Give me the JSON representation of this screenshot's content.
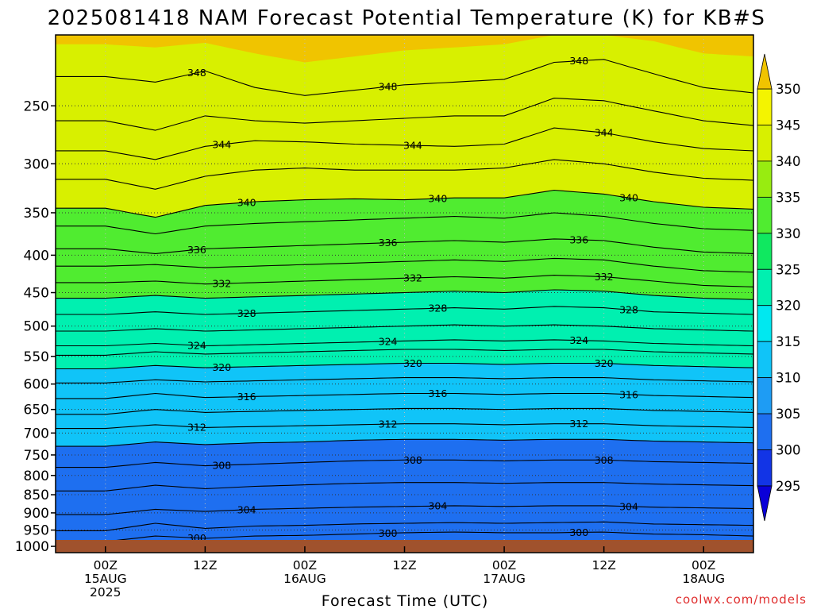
{
  "chart_data": {
    "type": "heatmap",
    "title": "2025081418 NAM Forecast Potential Temperature (K) for KB#S",
    "xlabel": "Forecast Time (UTC)",
    "ylabel": "",
    "watermark": "coolwx.com/models",
    "x": {
      "ticks": [
        {
          "lines": [
            "00Z",
            "15AUG",
            "2025"
          ]
        },
        {
          "lines": [
            "12Z"
          ]
        },
        {
          "lines": [
            "00Z",
            "16AUG"
          ]
        },
        {
          "lines": [
            "12Z"
          ]
        },
        {
          "lines": [
            "00Z",
            "17AUG"
          ]
        },
        {
          "lines": [
            "12Z"
          ]
        },
        {
          "lines": [
            "00Z",
            "18AUG"
          ]
        }
      ],
      "range_hours": [
        -6,
        78
      ]
    },
    "y": {
      "scale": "pressure",
      "range_hpa": [
        200,
        1020
      ],
      "ticks": [
        250,
        300,
        350,
        400,
        450,
        500,
        550,
        600,
        650,
        700,
        750,
        800,
        850,
        900,
        950,
        1000
      ],
      "grid": true
    },
    "colorbar": {
      "labels": [
        295,
        300,
        305,
        310,
        315,
        320,
        325,
        330,
        335,
        340,
        345,
        350
      ],
      "colors": [
        "#0a00d8",
        "#1234e6",
        "#1e6ff0",
        "#1e9cf4",
        "#10c4f8",
        "#00e8f0",
        "#00f0b0",
        "#10e860",
        "#50ec30",
        "#98ec10",
        "#d8f000",
        "#f4f400",
        "#f0c400"
      ]
    },
    "surface_color": "#a0522d",
    "contour_interval": 2,
    "labeled_contours": [
      348,
      344,
      340,
      336,
      332,
      328,
      324,
      320,
      316,
      312,
      308,
      304,
      300
    ],
    "contours": [
      {
        "value": 300,
        "t": [
          0,
          6,
          12,
          18,
          24,
          30,
          36,
          42,
          48,
          54,
          60,
          66,
          72,
          78
        ],
        "p": [
          985,
          968,
          975,
          968,
          966,
          962,
          958,
          956,
          958,
          958,
          956,
          962,
          964,
          968
        ]
      },
      {
        "value": 302,
        "t": [
          0,
          6,
          12,
          18,
          24,
          30,
          36,
          42,
          48,
          54,
          60,
          66,
          72,
          78
        ],
        "p": [
          952,
          930,
          945,
          938,
          936,
          932,
          930,
          928,
          930,
          928,
          926,
          932,
          934,
          936
        ]
      },
      {
        "value": 304,
        "t": [
          0,
          6,
          12,
          18,
          24,
          30,
          36,
          42,
          48,
          54,
          60,
          66,
          72,
          78
        ],
        "p": [
          905,
          890,
          896,
          890,
          887,
          884,
          882,
          880,
          882,
          880,
          880,
          884,
          886,
          888
        ]
      },
      {
        "value": 306,
        "t": [
          0,
          6,
          12,
          18,
          24,
          30,
          36,
          42,
          48,
          54,
          60,
          66,
          72,
          78
        ],
        "p": [
          840,
          825,
          834,
          828,
          824,
          820,
          818,
          818,
          820,
          818,
          818,
          822,
          824,
          826
        ]
      },
      {
        "value": 308,
        "t": [
          0,
          6,
          12,
          18,
          24,
          30,
          36,
          42,
          48,
          54,
          60,
          66,
          72,
          78
        ],
        "p": [
          780,
          768,
          776,
          772,
          768,
          764,
          762,
          762,
          764,
          762,
          762,
          766,
          768,
          770
        ]
      },
      {
        "value": 310,
        "t": [
          0,
          6,
          12,
          18,
          24,
          30,
          36,
          42,
          48,
          54,
          60,
          66,
          72,
          78
        ],
        "p": [
          730,
          720,
          726,
          722,
          720,
          716,
          714,
          714,
          716,
          714,
          714,
          718,
          720,
          722
        ]
      },
      {
        "value": 312,
        "t": [
          0,
          6,
          12,
          18,
          24,
          30,
          36,
          42,
          48,
          54,
          60,
          66,
          72,
          78
        ],
        "p": [
          690,
          682,
          688,
          686,
          684,
          682,
          680,
          680,
          682,
          680,
          680,
          684,
          686,
          688
        ]
      },
      {
        "value": 314,
        "t": [
          0,
          6,
          12,
          18,
          24,
          30,
          36,
          42,
          48,
          54,
          60,
          66,
          72,
          78
        ],
        "p": [
          660,
          650,
          656,
          654,
          652,
          650,
          648,
          648,
          650,
          648,
          648,
          652,
          654,
          656
        ]
      },
      {
        "value": 316,
        "t": [
          0,
          6,
          12,
          18,
          24,
          30,
          36,
          42,
          48,
          54,
          60,
          66,
          72,
          78
        ],
        "p": [
          628,
          618,
          626,
          624,
          622,
          620,
          618,
          618,
          620,
          618,
          618,
          622,
          624,
          626
        ]
      },
      {
        "value": 318,
        "t": [
          0,
          6,
          12,
          18,
          24,
          30,
          36,
          42,
          48,
          54,
          60,
          66,
          72,
          78
        ],
        "p": [
          598,
          592,
          596,
          594,
          592,
          590,
          588,
          588,
          590,
          588,
          588,
          592,
          594,
          596
        ]
      },
      {
        "value": 320,
        "t": [
          0,
          6,
          12,
          18,
          24,
          30,
          36,
          42,
          48,
          54,
          60,
          66,
          72,
          78
        ],
        "p": [
          572,
          566,
          570,
          568,
          566,
          564,
          562,
          562,
          564,
          562,
          562,
          566,
          568,
          570
        ]
      },
      {
        "value": 322,
        "t": [
          0,
          6,
          12,
          18,
          24,
          30,
          36,
          42,
          48,
          54,
          60,
          66,
          72,
          78
        ],
        "p": [
          548,
          542,
          546,
          544,
          542,
          540,
          538,
          538,
          540,
          538,
          538,
          542,
          544,
          546
        ]
      },
      {
        "value": 324,
        "t": [
          0,
          6,
          12,
          18,
          24,
          30,
          36,
          42,
          48,
          54,
          60,
          66,
          72,
          78
        ],
        "p": [
          532,
          528,
          532,
          530,
          528,
          526,
          524,
          522,
          524,
          522,
          524,
          528,
          530,
          532
        ]
      },
      {
        "value": 326,
        "t": [
          0,
          6,
          12,
          18,
          24,
          30,
          36,
          42,
          48,
          54,
          60,
          66,
          72,
          78
        ],
        "p": [
          508,
          504,
          508,
          506,
          504,
          502,
          500,
          498,
          500,
          498,
          500,
          504,
          506,
          508
        ]
      },
      {
        "value": 328,
        "t": [
          0,
          6,
          12,
          18,
          24,
          30,
          36,
          42,
          48,
          54,
          60,
          66,
          72,
          78
        ],
        "p": [
          482,
          478,
          482,
          480,
          478,
          476,
          474,
          472,
          474,
          470,
          472,
          478,
          480,
          482
        ]
      },
      {
        "value": 330,
        "t": [
          0,
          6,
          12,
          18,
          24,
          30,
          36,
          42,
          48,
          54,
          60,
          66,
          72,
          78
        ],
        "p": [
          458,
          454,
          458,
          456,
          454,
          452,
          450,
          448,
          450,
          446,
          448,
          454,
          458,
          460
        ]
      },
      {
        "value": 332,
        "t": [
          0,
          6,
          12,
          18,
          24,
          30,
          36,
          42,
          48,
          54,
          60,
          66,
          72,
          78
        ],
        "p": [
          436,
          434,
          438,
          436,
          434,
          432,
          430,
          428,
          430,
          426,
          428,
          434,
          440,
          442
        ]
      },
      {
        "value": 334,
        "t": [
          0,
          6,
          12,
          18,
          24,
          30,
          36,
          42,
          48,
          54,
          60,
          66,
          72,
          78
        ],
        "p": [
          414,
          412,
          416,
          414,
          412,
          410,
          408,
          406,
          408,
          404,
          406,
          414,
          420,
          422
        ]
      },
      {
        "value": 336,
        "t": [
          0,
          6,
          12,
          18,
          24,
          30,
          36,
          42,
          48,
          54,
          60,
          66,
          72,
          78
        ],
        "p": [
          392,
          398,
          392,
          390,
          388,
          386,
          384,
          382,
          384,
          380,
          382,
          390,
          396,
          398
        ]
      },
      {
        "value": 338,
        "t": [
          0,
          6,
          12,
          18,
          24,
          30,
          36,
          42,
          48,
          54,
          60,
          66,
          72,
          78
        ],
        "p": [
          365,
          374,
          365,
          362,
          360,
          358,
          356,
          354,
          356,
          350,
          354,
          362,
          368,
          370
        ]
      },
      {
        "value": 340,
        "t": [
          0,
          6,
          12,
          18,
          24,
          30,
          36,
          42,
          48,
          54,
          60,
          66,
          72,
          78
        ],
        "p": [
          345,
          355,
          342,
          338,
          336,
          335,
          336,
          334,
          334,
          326,
          330,
          338,
          344,
          346
        ]
      },
      {
        "value": 342,
        "t": [
          0,
          6,
          12,
          18,
          24,
          30,
          36,
          42,
          48,
          54,
          60,
          66,
          72,
          78
        ],
        "p": [
          315,
          325,
          312,
          306,
          304,
          306,
          306,
          306,
          304,
          296,
          300,
          308,
          314,
          316
        ]
      },
      {
        "value": 344,
        "t": [
          0,
          6,
          12,
          18,
          24,
          30,
          36,
          42,
          48,
          54,
          60,
          66,
          72,
          78
        ],
        "p": [
          288,
          296,
          284,
          279,
          280,
          282,
          283,
          284,
          282,
          268,
          272,
          280,
          286,
          288
        ]
      },
      {
        "value": 346,
        "t": [
          0,
          6,
          12,
          18,
          24,
          30,
          36,
          42,
          48,
          54,
          60,
          66,
          72,
          78
        ],
        "p": [
          262,
          270,
          258,
          262,
          264,
          262,
          260,
          258,
          258,
          244,
          246,
          254,
          262,
          266
        ]
      },
      {
        "value": 348,
        "t": [
          0,
          6,
          12,
          18,
          24,
          30,
          36,
          42,
          48,
          54,
          60,
          66,
          72,
          78
        ],
        "p": [
          228,
          232,
          224,
          236,
          242,
          238,
          234,
          232,
          230,
          218,
          216,
          226,
          236,
          240
        ]
      }
    ]
  }
}
